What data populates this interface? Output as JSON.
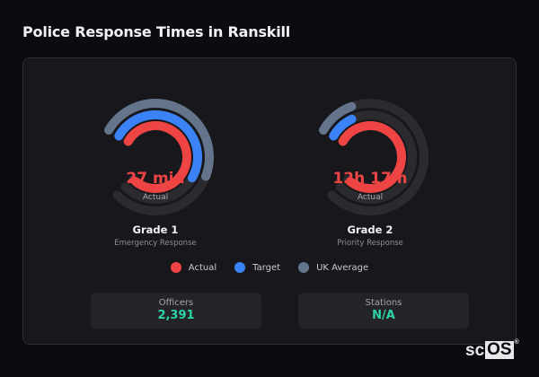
{
  "header": {
    "title": "Police Response Times in Ranskill"
  },
  "colors": {
    "actual": "#ef4444",
    "target": "#3b82f6",
    "uk_average": "#64748b",
    "track": "#2a2a2f",
    "stat_value": "#2dd4a8"
  },
  "gauges": [
    {
      "name": "Grade 1",
      "description": "Emergency Response",
      "value_label": "27 min",
      "value_caption": "Actual"
    },
    {
      "name": "Grade 2",
      "description": "Priority Response",
      "value_label": "12h 17m",
      "value_caption": "Actual"
    }
  ],
  "legend": [
    {
      "label": "Actual",
      "color": "#ef4444"
    },
    {
      "label": "Target",
      "color": "#3b82f6"
    },
    {
      "label": "UK Average",
      "color": "#64748b"
    }
  ],
  "stats": [
    {
      "label": "Officers",
      "value": "2,391"
    },
    {
      "label": "Stations",
      "value": "N/A"
    }
  ],
  "brand": {
    "prefix": "sc",
    "highlight": "OS",
    "mark": "®"
  },
  "chart_data": [
    {
      "type": "radial-gauge",
      "title": "Grade 1",
      "subtitle": "Emergency Response",
      "center_label": "27 min",
      "center_caption": "Actual",
      "series": [
        {
          "name": "UK Average",
          "fraction": 0.6,
          "color": "#64748b"
        },
        {
          "name": "Target",
          "fraction": 0.63,
          "color": "#3b82f6"
        },
        {
          "name": "Actual",
          "fraction": 0.98,
          "color": "#ef4444"
        }
      ],
      "sweep_degrees": 285
    },
    {
      "type": "radial-gauge",
      "title": "Grade 2",
      "subtitle": "Priority Response",
      "center_label": "12h 17m",
      "center_caption": "Actual",
      "series": [
        {
          "name": "UK Average",
          "fraction": 0.14,
          "color": "#64748b"
        },
        {
          "name": "Target",
          "fraction": 0.12,
          "color": "#3b82f6"
        },
        {
          "name": "Actual",
          "fraction": 0.98,
          "color": "#ef4444"
        }
      ],
      "sweep_degrees": 285
    }
  ]
}
